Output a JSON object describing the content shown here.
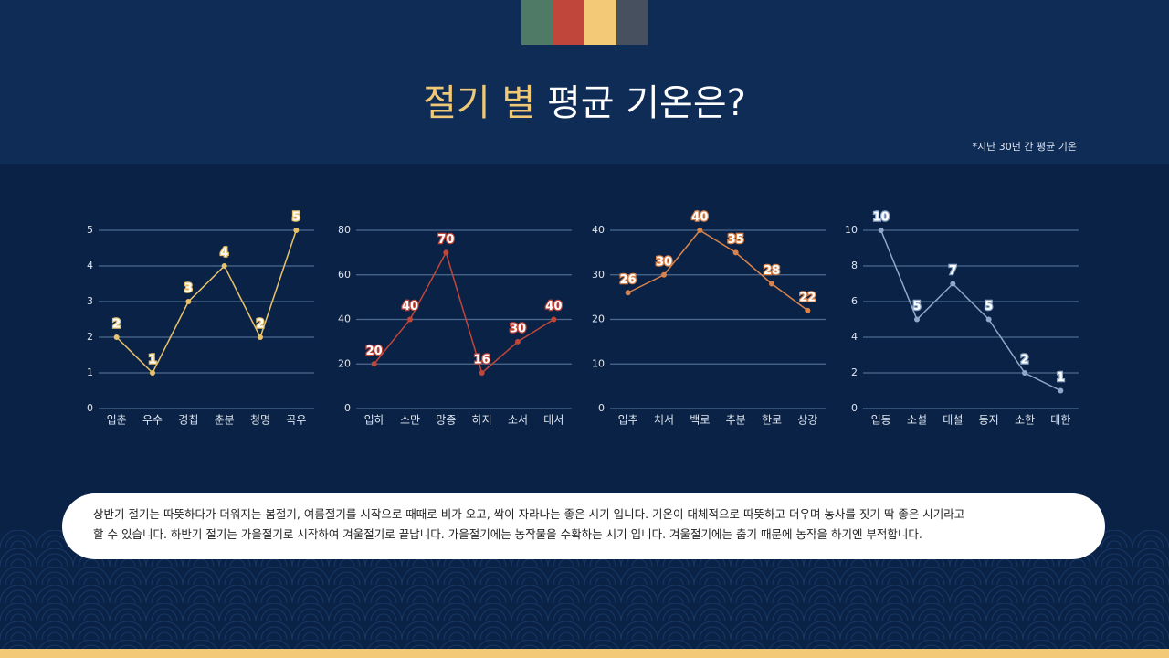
{
  "header": {
    "title_highlight": "절기 별",
    "title_rest": "평균 기온은?",
    "note": "*지난 30년 간 평균 기온"
  },
  "chart_data": [
    {
      "type": "line",
      "categories": [
        "입춘",
        "우수",
        "경칩",
        "춘분",
        "청명",
        "곡우"
      ],
      "values": [
        2,
        1,
        3,
        4,
        2,
        5
      ],
      "color": "#e8c26b",
      "ylim": [
        0,
        5
      ],
      "yticks": [
        0,
        1,
        2,
        3,
        4,
        5
      ],
      "grid": true
    },
    {
      "type": "line",
      "categories": [
        "입하",
        "소만",
        "망종",
        "하지",
        "소서",
        "대서"
      ],
      "values": [
        20,
        40,
        70,
        16,
        30,
        40
      ],
      "color": "#c0463a",
      "ylim": [
        0,
        80
      ],
      "yticks": [
        0,
        20,
        40,
        60,
        80
      ],
      "grid": true
    },
    {
      "type": "line",
      "categories": [
        "입추",
        "처서",
        "백로",
        "추분",
        "한로",
        "상강"
      ],
      "values": [
        26,
        30,
        40,
        35,
        28,
        22
      ],
      "color": "#d9824a",
      "ylim": [
        0,
        40
      ],
      "yticks": [
        0,
        10,
        20,
        30,
        40
      ],
      "grid": true
    },
    {
      "type": "line",
      "categories": [
        "입동",
        "소설",
        "대설",
        "동지",
        "소한",
        "대한"
      ],
      "values": [
        10,
        5,
        7,
        5,
        2,
        1
      ],
      "color": "#8fa8c8",
      "ylim": [
        0,
        10
      ],
      "yticks": [
        0,
        2,
        4,
        6,
        8,
        10
      ],
      "grid": true
    }
  ],
  "description": [
    "상반기 절기는 따뜻하다가 더워지는 봄절기, 여름절기를 시작으로 때때로 비가 오고, 싹이 자라나는 좋은 시기 입니다. 기온이 대체적으로 따뜻하고 더우며 농사를 짓기 딱 좋은 시기라고",
    "할 수 있습니다. 하반기 절기는 가을절기로 시작하여 겨울절기로 끝납니다. 가을절기에는 농작물을 수확하는 시기 입니다. 겨울절기에는 춥기 때문에 농작을 하기엔 부적합니다."
  ]
}
